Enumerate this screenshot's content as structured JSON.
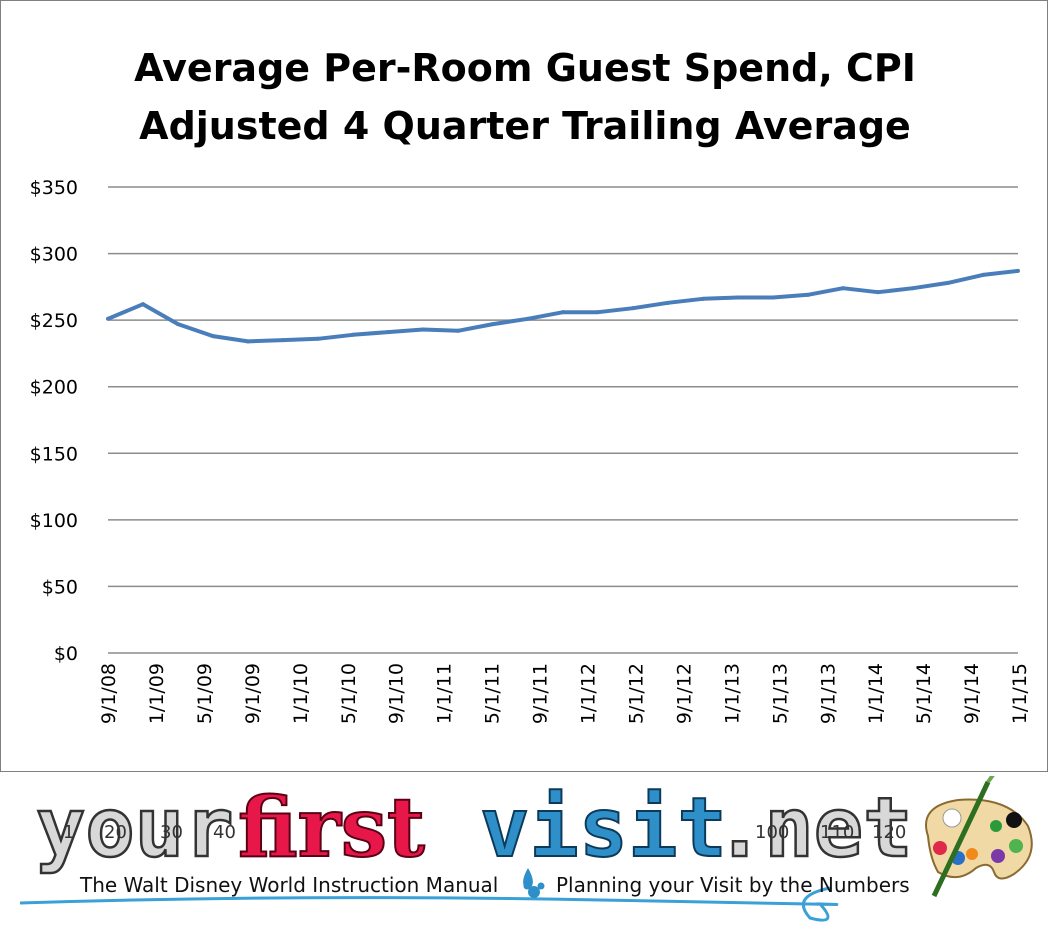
{
  "chart_data": {
    "type": "line",
    "title_lines": [
      "Average Per-Room Guest Spend, CPI",
      "Adjusted 4 Quarter Trailing Average"
    ],
    "xlabel": "",
    "ylabel": "",
    "ylim": [
      0,
      350
    ],
    "yticks": [
      "$0",
      "$50",
      "$100",
      "$150",
      "$200",
      "$250",
      "$300",
      "$350"
    ],
    "ytick_values": [
      0,
      50,
      100,
      150,
      200,
      250,
      300,
      350
    ],
    "x_tick_labels": [
      "9/1/08",
      "1/1/09",
      "5/1/09",
      "9/1/09",
      "1/1/10",
      "5/1/10",
      "9/1/10",
      "1/1/11",
      "5/1/11",
      "9/1/11",
      "1/1/12",
      "5/1/12",
      "9/1/12",
      "1/1/13",
      "5/1/13",
      "9/1/13",
      "1/1/14",
      "5/1/14",
      "9/1/14",
      "1/1/15"
    ],
    "grid": true,
    "legend": "none",
    "line_color": "#4a7ebb",
    "series": [
      {
        "values": [
          251,
          262,
          247,
          238,
          234,
          235,
          236,
          239,
          241,
          243,
          242,
          247,
          251,
          256,
          256,
          259,
          263,
          266,
          267,
          267,
          269,
          274,
          271,
          274,
          278,
          284,
          287
        ]
      }
    ]
  },
  "banner": {
    "logo": {
      "your": "your",
      "first": "first",
      "visit": "visit",
      "dot_net": ".net",
      "clock_numbers": [
        "1",
        "20",
        "30",
        "40",
        "100",
        "110",
        "120"
      ]
    },
    "tagline_left": "The Walt Disney World Instruction Manual",
    "tagline_right": "Planning your Visit by the Numbers",
    "colors": {
      "first": "#e8174a",
      "visit": "#2f8fc9",
      "gray": "#d8d8d8"
    },
    "icons": [
      "palette-icon",
      "mickey-drop-icon"
    ]
  }
}
